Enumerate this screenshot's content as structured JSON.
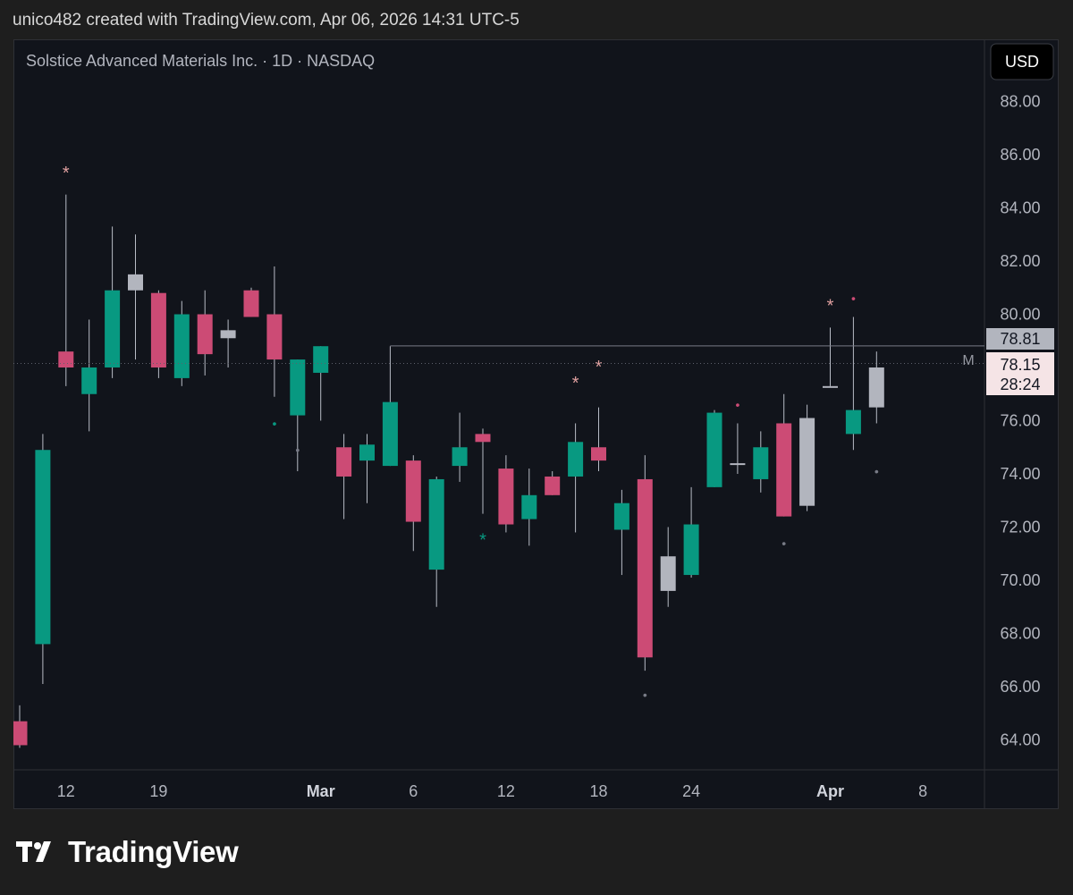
{
  "header": {
    "text": "unico482 created with TradingView.com, Apr 06, 2026 14:31 UTC-5"
  },
  "legend": {
    "title": "Solstice Advanced Materials Inc. · 1D · NASDAQ"
  },
  "currency_button": "USD",
  "brand": {
    "name": "TradingView"
  },
  "colors": {
    "up": "#089981",
    "down": "#cc4b75",
    "neutral": "#b2b5be",
    "background": "#11141b"
  },
  "chart_data": {
    "type": "candlestick",
    "ylim": [
      62.9,
      90.1
    ],
    "y_ticks": [
      "88.00",
      "86.00",
      "84.00",
      "82.00",
      "80.00",
      "78.00",
      "76.00",
      "74.00",
      "72.00",
      "70.00",
      "68.00",
      "66.00",
      "64.00"
    ],
    "x_ticks": [
      {
        "label": "12",
        "bold": false
      },
      {
        "label": "19",
        "bold": false
      },
      {
        "label": "Mar",
        "bold": true
      },
      {
        "label": "6",
        "bold": false
      },
      {
        "label": "12",
        "bold": false
      },
      {
        "label": "18",
        "bold": false
      },
      {
        "label": "24",
        "bold": false
      },
      {
        "label": "Apr",
        "bold": true
      },
      {
        "label": "8",
        "bold": false
      }
    ],
    "price_labels": {
      "last_close": "78.81",
      "current": "78.15",
      "countdown": "28:24",
      "marker": "M"
    },
    "reference_line": 78.81,
    "current_price": 78.15,
    "candles": [
      {
        "o": 64.7,
        "h": 65.3,
        "l": 63.7,
        "c": 63.8,
        "m": "down"
      },
      {
        "o": 67.6,
        "h": 75.5,
        "l": 66.1,
        "c": 74.9,
        "m": "up"
      },
      {
        "o": 78.0,
        "h": 84.5,
        "l": 77.3,
        "c": 78.6,
        "m": "down",
        "mk": {
          "s": "*",
          "v": 85.4,
          "c": "#e0a0a0"
        }
      },
      {
        "o": 77.0,
        "h": 79.8,
        "l": 75.6,
        "c": 78.0,
        "m": "up"
      },
      {
        "o": 78.0,
        "h": 83.3,
        "l": 77.6,
        "c": 80.9,
        "m": "up"
      },
      {
        "o": 80.9,
        "h": 83.0,
        "l": 78.3,
        "c": 81.5,
        "m": "neutral"
      },
      {
        "o": 80.8,
        "h": 80.9,
        "l": 77.6,
        "c": 78.0,
        "m": "down"
      },
      {
        "o": 77.6,
        "h": 80.5,
        "l": 77.3,
        "c": 80.0,
        "m": "up"
      },
      {
        "o": 80.0,
        "h": 80.9,
        "l": 77.7,
        "c": 78.5,
        "m": "down"
      },
      {
        "o": 79.1,
        "h": 79.8,
        "l": 78.0,
        "c": 79.4,
        "m": "neutral"
      },
      {
        "o": 80.9,
        "h": 81.0,
        "l": 79.9,
        "c": 79.9,
        "m": "down"
      },
      {
        "o": 80.0,
        "h": 81.8,
        "l": 76.9,
        "c": 78.3,
        "m": "down",
        "mk": {
          "s": "•",
          "v": 75.9,
          "c": "#089981"
        }
      },
      {
        "o": 76.2,
        "h": 78.3,
        "l": 74.1,
        "c": 78.3,
        "m": "up",
        "mk": {
          "s": "•",
          "v": 74.9,
          "c": "#787b86"
        }
      },
      {
        "o": 77.8,
        "h": 78.8,
        "l": 76.0,
        "c": 78.8,
        "m": "up"
      },
      {
        "o": 75.0,
        "h": 75.5,
        "l": 72.3,
        "c": 73.9,
        "m": "down"
      },
      {
        "o": 74.5,
        "h": 75.5,
        "l": 72.9,
        "c": 75.1,
        "m": "up"
      },
      {
        "o": 74.3,
        "h": 78.8,
        "l": 74.3,
        "c": 76.7,
        "m": "up"
      },
      {
        "o": 74.5,
        "h": 74.7,
        "l": 71.1,
        "c": 72.2,
        "m": "down"
      },
      {
        "o": 70.4,
        "h": 73.9,
        "l": 69.0,
        "c": 73.8,
        "m": "up"
      },
      {
        "o": 74.3,
        "h": 76.3,
        "l": 73.7,
        "c": 75.0,
        "m": "up"
      },
      {
        "o": 75.5,
        "h": 75.7,
        "l": 72.5,
        "c": 75.2,
        "m": "down",
        "mk": {
          "s": "*",
          "v": 71.6,
          "c": "#089981"
        }
      },
      {
        "o": 74.2,
        "h": 74.7,
        "l": 71.8,
        "c": 72.1,
        "m": "down"
      },
      {
        "o": 72.3,
        "h": 74.2,
        "l": 71.3,
        "c": 73.2,
        "m": "up"
      },
      {
        "o": 73.9,
        "h": 74.1,
        "l": 73.2,
        "c": 73.2,
        "m": "down"
      },
      {
        "o": 73.9,
        "h": 75.9,
        "l": 71.8,
        "c": 75.2,
        "m": "up",
        "mk": {
          "s": "*",
          "v": 77.5,
          "c": "#e0a0a0"
        }
      },
      {
        "o": 75.0,
        "h": 76.5,
        "l": 74.1,
        "c": 74.5,
        "m": "down",
        "mk": {
          "s": "*",
          "v": 78.1,
          "c": "#e0a0a0"
        }
      },
      {
        "o": 71.9,
        "h": 73.4,
        "l": 70.2,
        "c": 72.9,
        "m": "up"
      },
      {
        "o": 73.8,
        "h": 74.7,
        "l": 66.6,
        "c": 67.1,
        "m": "down",
        "mk": {
          "s": "•",
          "v": 65.7,
          "c": "#787b86"
        }
      },
      {
        "o": 70.9,
        "h": 72.0,
        "l": 69.0,
        "c": 69.6,
        "m": "neutral"
      },
      {
        "o": 70.2,
        "h": 73.5,
        "l": 70.1,
        "c": 72.1,
        "m": "up"
      },
      {
        "o": 73.5,
        "h": 76.4,
        "l": 73.5,
        "c": 76.3,
        "m": "up"
      },
      {
        "o": 74.4,
        "h": 75.9,
        "l": 74.0,
        "c": 74.4,
        "m": "neutral",
        "mk": {
          "s": "•",
          "v": 76.6,
          "c": "#cc4b75"
        }
      },
      {
        "o": 73.8,
        "h": 75.6,
        "l": 73.3,
        "c": 75.0,
        "m": "up"
      },
      {
        "o": 75.9,
        "h": 77.0,
        "l": 72.4,
        "c": 72.4,
        "m": "down",
        "mk": {
          "s": "•",
          "v": 71.4,
          "c": "#787b86"
        }
      },
      {
        "o": 72.8,
        "h": 76.6,
        "l": 72.6,
        "c": 76.1,
        "m": "neutral"
      },
      {
        "o": 77.3,
        "h": 79.5,
        "l": 77.3,
        "c": 77.3,
        "m": "neutral",
        "mk": {
          "s": "*",
          "v": 80.4,
          "c": "#e0a0a0"
        }
      },
      {
        "o": 75.5,
        "h": 79.9,
        "l": 74.9,
        "c": 76.4,
        "m": "up",
        "mk": {
          "s": "•",
          "v": 80.6,
          "c": "#cc4b75"
        }
      },
      {
        "o": 76.5,
        "h": 78.6,
        "l": 75.9,
        "c": 78.0,
        "m": "neutral",
        "mk": {
          "s": "•",
          "v": 74.1,
          "c": "#787b86"
        }
      }
    ]
  }
}
